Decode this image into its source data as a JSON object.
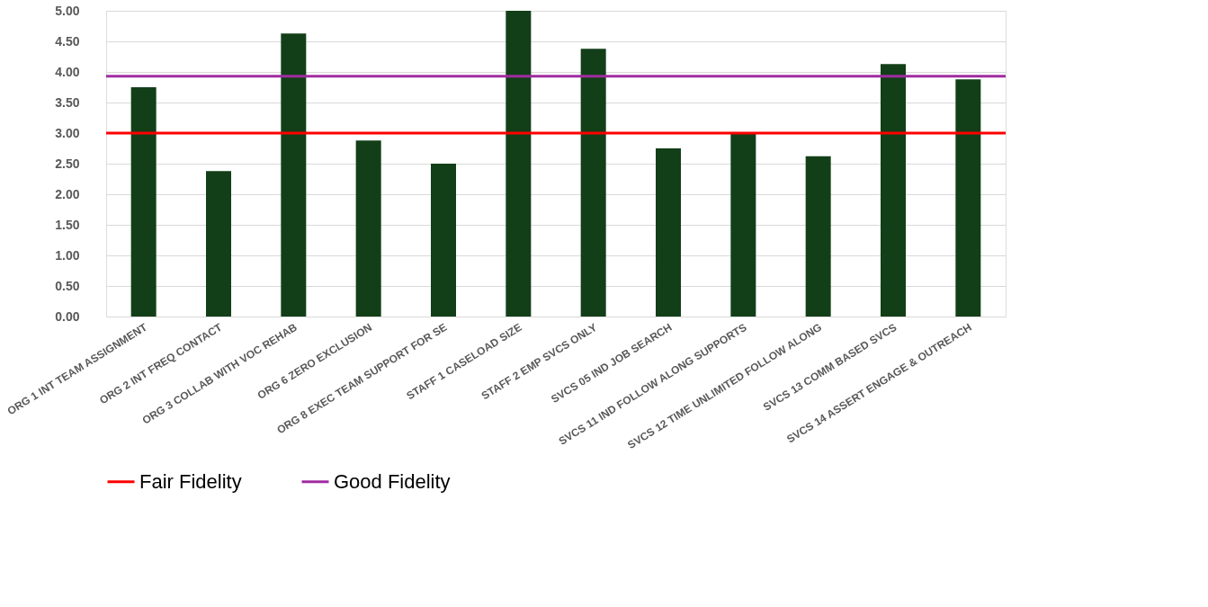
{
  "chart_data": {
    "type": "bar",
    "categories": [
      "ORG 1 INT TEAM ASSIGNMENT",
      "ORG 2 INT FREQ CONTACT",
      "ORG 3 COLLAB WITH VOC REHAB",
      "ORG 6 ZERO EXCLUSION",
      "ORG 8 EXEC TEAM SUPPORT FOR SE",
      "STAFF 1 CASELOAD SIZE",
      "STAFF 2 EMP SVCS ONLY",
      "SVCS 05 IND JOB SEARCH",
      "SVCS 11 IND FOLLOW ALONG SUPPORTS",
      "SVCS 12 TIME UNLIMITED FOLLOW ALONG",
      "SVCS 13 COMM BASED SVCS",
      "SVCS 14 ASSERT ENGAGE & OUTREACH"
    ],
    "values": [
      3.75,
      2.38,
      4.63,
      2.88,
      2.5,
      5.0,
      4.38,
      2.75,
      3.0,
      2.62,
      4.13,
      3.88
    ],
    "color": "#123f18",
    "ylim": [
      0,
      5
    ],
    "yticks": [
      {
        "value": 0,
        "label": "0.00"
      },
      {
        "value": 0.5,
        "label": "0.50"
      },
      {
        "value": 1,
        "label": "1.00"
      },
      {
        "value": 1.5,
        "label": "1.50"
      },
      {
        "value": 2,
        "label": "2.00"
      },
      {
        "value": 2.5,
        "label": "2.50"
      },
      {
        "value": 3,
        "label": "3.00"
      },
      {
        "value": 3.5,
        "label": "3.50"
      },
      {
        "value": 4,
        "label": "4.00"
      },
      {
        "value": 4.5,
        "label": "4.50"
      },
      {
        "value": 5,
        "label": "5.00"
      }
    ],
    "grid": "y",
    "legend": "bottom",
    "ref_lines": [
      {
        "axis": "y",
        "value": 3.0,
        "label": "Fair Fidelity",
        "color": "#ff0000"
      },
      {
        "axis": "y",
        "value": 3.93,
        "label": "Good Fidelity",
        "color": "#a02ca0"
      }
    ]
  }
}
